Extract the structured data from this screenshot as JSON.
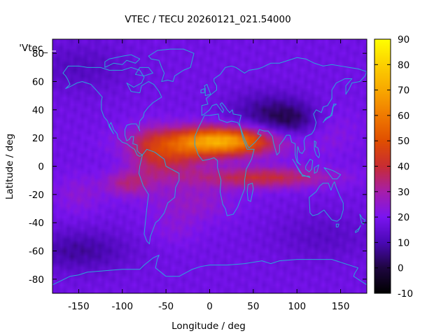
{
  "chart_data": {
    "type": "heatmap",
    "title": "VTEC / TECU 20260121_021.54000",
    "series_label": "'Vtec_",
    "xlabel": "Longitude / deg",
    "ylabel": "Latitude / deg",
    "xlim": [
      -180,
      180
    ],
    "ylim": [
      -90,
      90
    ],
    "x_ticks": [
      -150,
      -100,
      -50,
      0,
      50,
      100,
      150
    ],
    "y_ticks": [
      -80,
      -60,
      -40,
      -20,
      0,
      20,
      40,
      60,
      80
    ],
    "colorbar": {
      "range": [
        -10,
        90
      ],
      "ticks": [
        -10,
        0,
        10,
        20,
        30,
        40,
        50,
        60,
        70,
        80,
        90
      ],
      "stops": [
        {
          "value": -10,
          "color": "#000000"
        },
        {
          "value": 0,
          "color": "#1e0640"
        },
        {
          "value": 10,
          "color": "#4a08b4"
        },
        {
          "value": 20,
          "color": "#7a14f0"
        },
        {
          "value": 30,
          "color": "#a61eaa"
        },
        {
          "value": 40,
          "color": "#c82c32"
        },
        {
          "value": 50,
          "color": "#e04e00"
        },
        {
          "value": 60,
          "color": "#f07a00"
        },
        {
          "value": 70,
          "color": "#f8a800"
        },
        {
          "value": 80,
          "color": "#fcd000"
        },
        {
          "value": 90,
          "color": "#ffff00"
        }
      ]
    },
    "field_features": {
      "background_tecu": 18,
      "equatorial_crest": {
        "peak_lon": 0,
        "peak_lat": 17,
        "peak_tecu": 74,
        "extent_lon": [
          -70,
          150
        ]
      },
      "southern_crest": {
        "lon": 20,
        "lat": -8,
        "tecu": 48
      },
      "minimum_asia": {
        "lon": 95,
        "lat": 33,
        "tecu": 4
      },
      "minimum_south_pacific": {
        "lon": -150,
        "lat": -60,
        "tecu": 6
      }
    },
    "coastline_color": "#2aa7d8"
  }
}
